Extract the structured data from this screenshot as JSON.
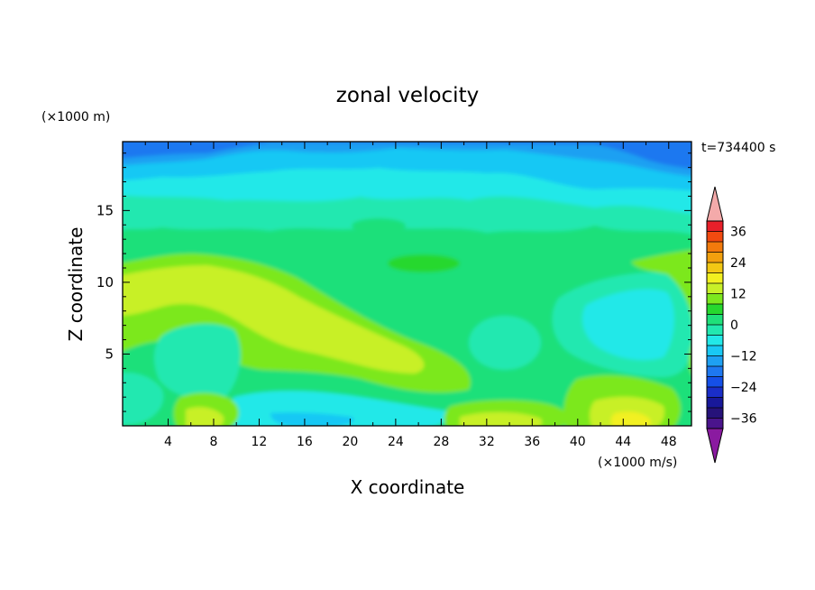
{
  "chart_data": {
    "type": "heatmap",
    "title": "zonal velocity",
    "time_label": "t=734400 s",
    "xlabel": "X coordinate",
    "ylabel": "Z coordinate",
    "x_unit": "(×1000 m/s)",
    "y_unit": "(×1000 m)",
    "xlim": [
      0,
      50
    ],
    "ylim": [
      0,
      19.8
    ],
    "x_ticks": [
      4,
      8,
      12,
      16,
      20,
      24,
      28,
      32,
      36,
      40,
      44,
      48
    ],
    "y_ticks": [
      5,
      10,
      15
    ],
    "colorbar": {
      "levels": [
        -40,
        -36,
        -32,
        -28,
        -24,
        -20,
        -16,
        -12,
        -8,
        -4,
        0,
        4,
        8,
        12,
        16,
        20,
        24,
        28,
        32,
        36,
        40
      ],
      "tick_labels": [
        36,
        24,
        12,
        0,
        -12,
        -24,
        -36
      ],
      "colors": [
        "#4a148c",
        "#26127a",
        "#18189a",
        "#1a2ec8",
        "#1550e8",
        "#1e78f0",
        "#1ea0f2",
        "#19c8f4",
        "#22e8e8",
        "#22e8b0",
        "#1fe07a",
        "#26d82e",
        "#7ce81e",
        "#c8f028",
        "#f2f020",
        "#f2c814",
        "#f2a00e",
        "#f27a0c",
        "#f24a10",
        "#e8202a"
      ],
      "over_color": "#f4aaaa",
      "under_color": "#8a1aa0"
    },
    "field_description_levels": {
      "top_band": [
        -20,
        -8
      ],
      "upper_middle": [
        -8,
        -4
      ],
      "middle": [
        -4,
        4
      ],
      "lower_ridge": [
        4,
        12
      ],
      "bottom_pockets": [
        12,
        16
      ]
    }
  }
}
